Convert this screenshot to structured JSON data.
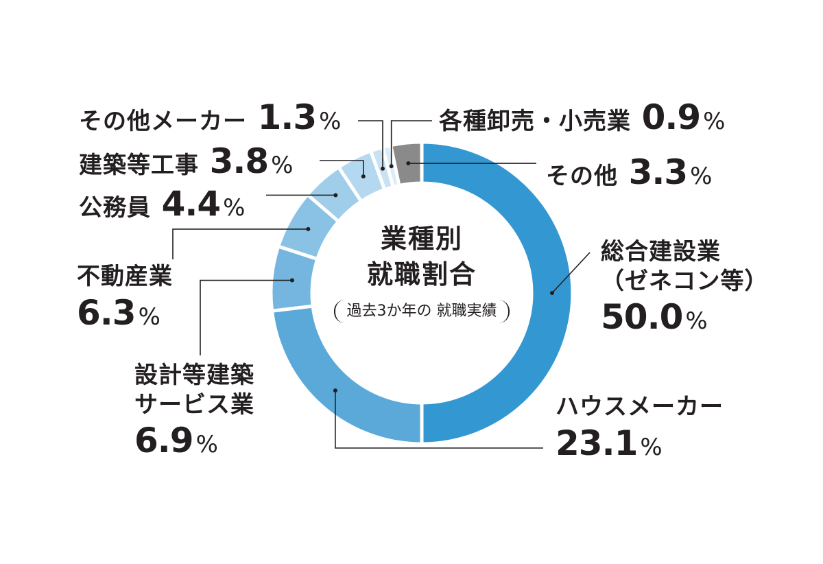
{
  "chart_data": {
    "type": "pie",
    "style": "donut",
    "title": "業種別就職割合",
    "title_lines": [
      "業種別",
      "就職割合"
    ],
    "subtitle_lines": [
      "過去3か年の",
      "就職実績"
    ],
    "percent_sign": "%",
    "legend": "none",
    "slices": [
      {
        "name": "総合建設業（ゼネコン等）",
        "name_lines": [
          "総合建設業",
          "（ゼネコン等）"
        ],
        "value": 50.0,
        "value_text": "50.0",
        "color": "#3398d2"
      },
      {
        "name": "ハウスメーカー",
        "name_lines": [
          "ハウスメーカー"
        ],
        "value": 23.1,
        "value_text": "23.1",
        "color": "#5ba9d9"
      },
      {
        "name": "設計等建築サービス業",
        "name_lines": [
          "設計等建築",
          "サービス業"
        ],
        "value": 6.9,
        "value_text": "6.9",
        "color": "#74b6df"
      },
      {
        "name": "不動産業",
        "name_lines": [
          "不動産業"
        ],
        "value": 6.3,
        "value_text": "6.3",
        "color": "#89c2e5"
      },
      {
        "name": "公務員",
        "name_lines": [
          "公務員"
        ],
        "value": 4.4,
        "value_text": "4.4",
        "color": "#9fcdea"
      },
      {
        "name": "建築等工事",
        "name_lines": [
          "建築等工事"
        ],
        "value": 3.8,
        "value_text": "3.8",
        "color": "#b4d8ef"
      },
      {
        "name": "その他メーカー",
        "name_lines": [
          "その他メーカー"
        ],
        "value": 1.3,
        "value_text": "1.3",
        "color": "#c8e2f3"
      },
      {
        "name": "各種卸売・小売業",
        "name_lines": [
          "各種卸売・小売業"
        ],
        "value": 0.9,
        "value_text": "0.9",
        "color": "#dbecf8"
      },
      {
        "name": "その他",
        "name_lines": [
          "その他"
        ],
        "value": 3.3,
        "value_text": "3.3",
        "color": "#8a8a8a"
      }
    ]
  }
}
